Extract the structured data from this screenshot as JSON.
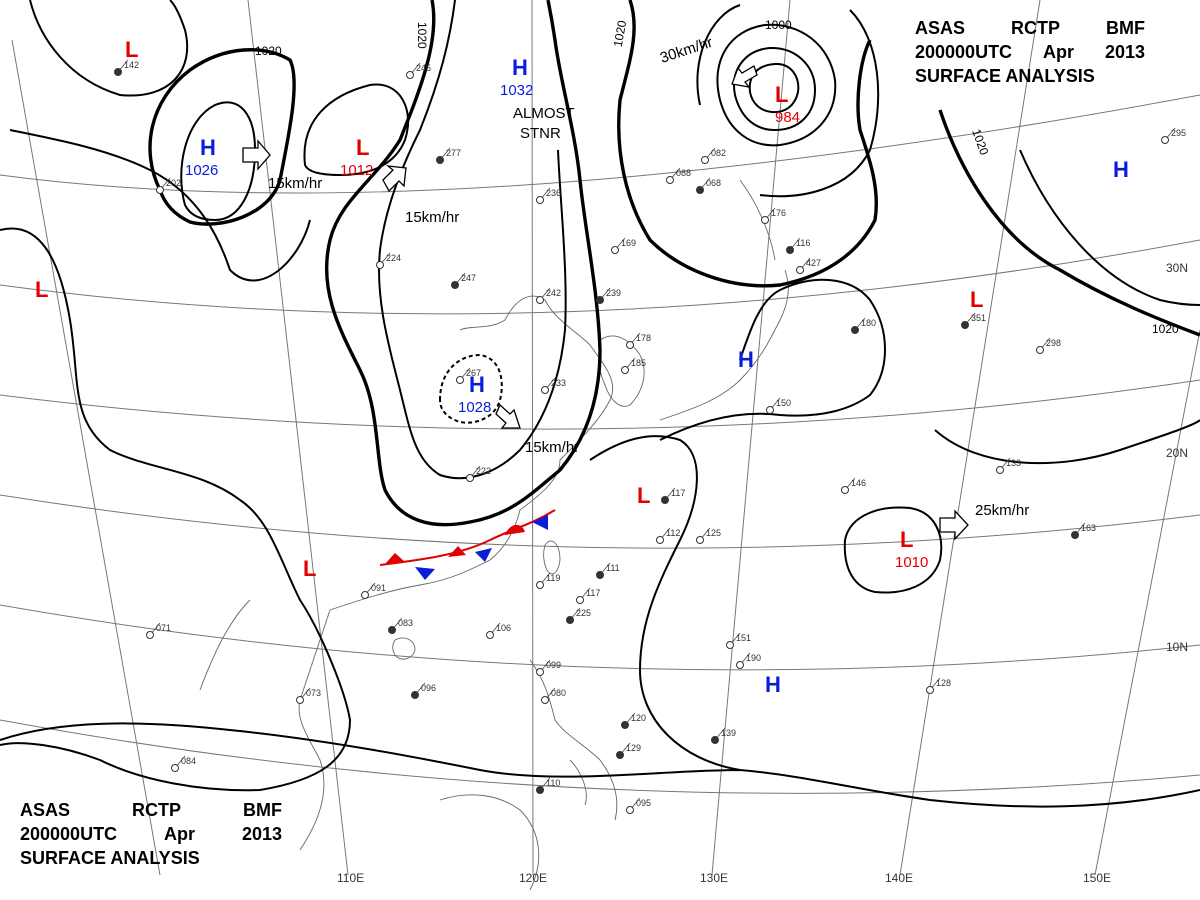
{
  "header": {
    "agency": "ASAS",
    "station": "RCTP",
    "office": "BMF",
    "datetime": "200000UTC",
    "month": "Apr",
    "year": "2013",
    "title": "SURFACE ANALYSIS"
  },
  "colors": {
    "low": "#e00000",
    "high": "#0a1ed8",
    "isobar": "#000000",
    "grid": "#777777",
    "coast": "#666666"
  },
  "longitudes": [
    "110E",
    "120E",
    "130E",
    "140E",
    "150E"
  ],
  "latitudes": [
    "30N",
    "20N",
    "10N"
  ],
  "isobar_labels": [
    "1020",
    "1020",
    "1020",
    "1020",
    "1020",
    "1000"
  ],
  "pressure_systems": [
    {
      "type": "L",
      "pressure": ""
    },
    {
      "type": "H",
      "pressure": "1026"
    },
    {
      "type": "L",
      "pressure": "1012"
    },
    {
      "type": "H",
      "pressure": "1032"
    },
    {
      "type": "L",
      "pressure": "984"
    },
    {
      "type": "H",
      "pressure": ""
    },
    {
      "type": "L",
      "pressure": ""
    },
    {
      "type": "L",
      "pressure": ""
    },
    {
      "type": "H",
      "pressure": "1028"
    },
    {
      "type": "H",
      "pressure": ""
    },
    {
      "type": "L",
      "pressure": ""
    },
    {
      "type": "L",
      "pressure": "1010"
    },
    {
      "type": "L",
      "pressure": ""
    },
    {
      "type": "H",
      "pressure": ""
    }
  ],
  "motions": [
    "15km/hr",
    "15km/hr",
    "30km/hr",
    "15km/hr",
    "25km/hr"
  ],
  "annotations": [
    "ALMOST",
    "STNR"
  ],
  "station_reports": [
    "142",
    "202",
    "245",
    "277",
    "236",
    "224",
    "247",
    "169",
    "242",
    "239",
    "267",
    "233",
    "180",
    "178",
    "185",
    "116",
    "176",
    "150",
    "117",
    "133",
    "146",
    "163",
    "128",
    "151",
    "139",
    "125",
    "112",
    "111",
    "117",
    "106",
    "083",
    "091",
    "073",
    "096",
    "071",
    "084",
    "120",
    "099",
    "080",
    "110",
    "095",
    "119",
    "129",
    "298",
    "295",
    "351",
    "427",
    "190",
    "225",
    "222",
    "082",
    "068",
    "088"
  ]
}
